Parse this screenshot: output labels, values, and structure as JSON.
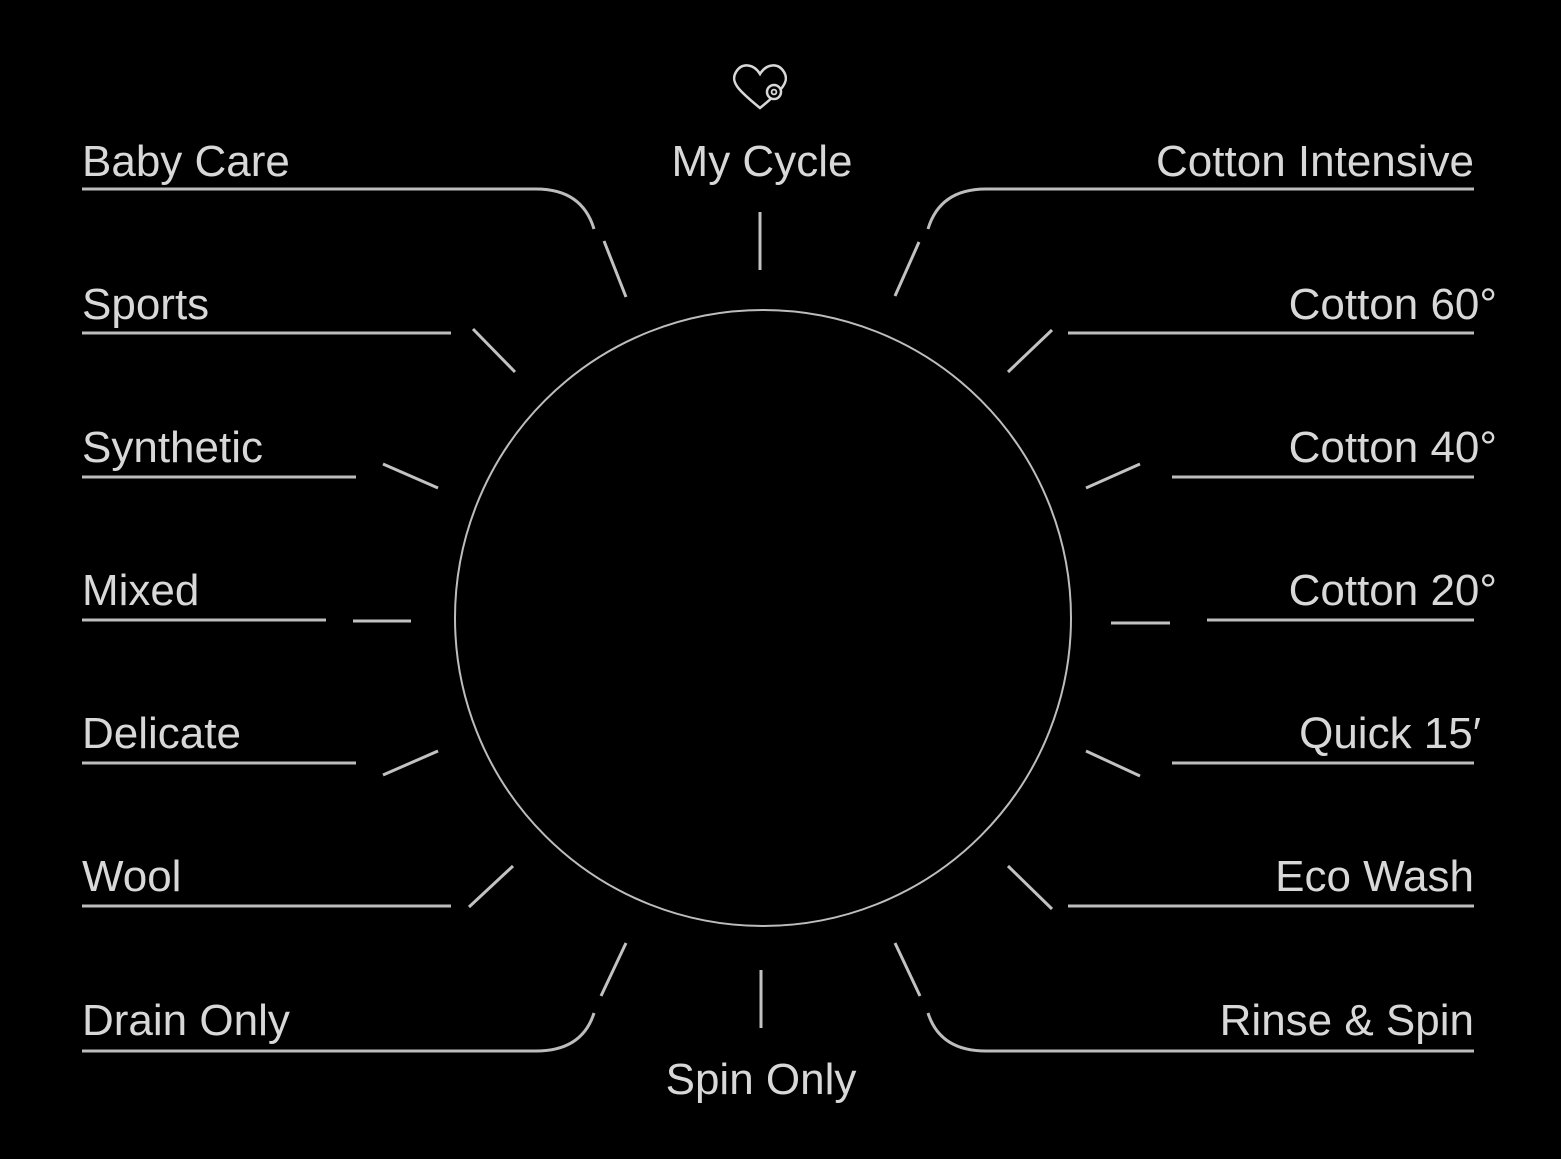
{
  "colors": {
    "background": "#000000",
    "label": "#d8d8d8",
    "guide_line": "#bdbdbd",
    "tick_mark": "#c2c2c2",
    "drum_outline": "#bdbdbd"
  },
  "favorite_icon": "heart-gear-icon",
  "programs": {
    "top": {
      "label": "My Cycle"
    },
    "left": [
      {
        "label": "Baby Care"
      },
      {
        "label": "Sports"
      },
      {
        "label": "Synthetic"
      },
      {
        "label": "Mixed"
      },
      {
        "label": "Delicate"
      },
      {
        "label": "Wool"
      },
      {
        "label": "Drain Only"
      }
    ],
    "right": [
      {
        "label": "Cotton Intensive"
      },
      {
        "label": "Cotton 60°"
      },
      {
        "label": "Cotton 40°"
      },
      {
        "label": "Cotton 20°"
      },
      {
        "label": "Quick 15′"
      },
      {
        "label": "Eco Wash"
      },
      {
        "label": "Rinse & Spin"
      }
    ],
    "bottom": {
      "label": "Spin Only"
    }
  }
}
